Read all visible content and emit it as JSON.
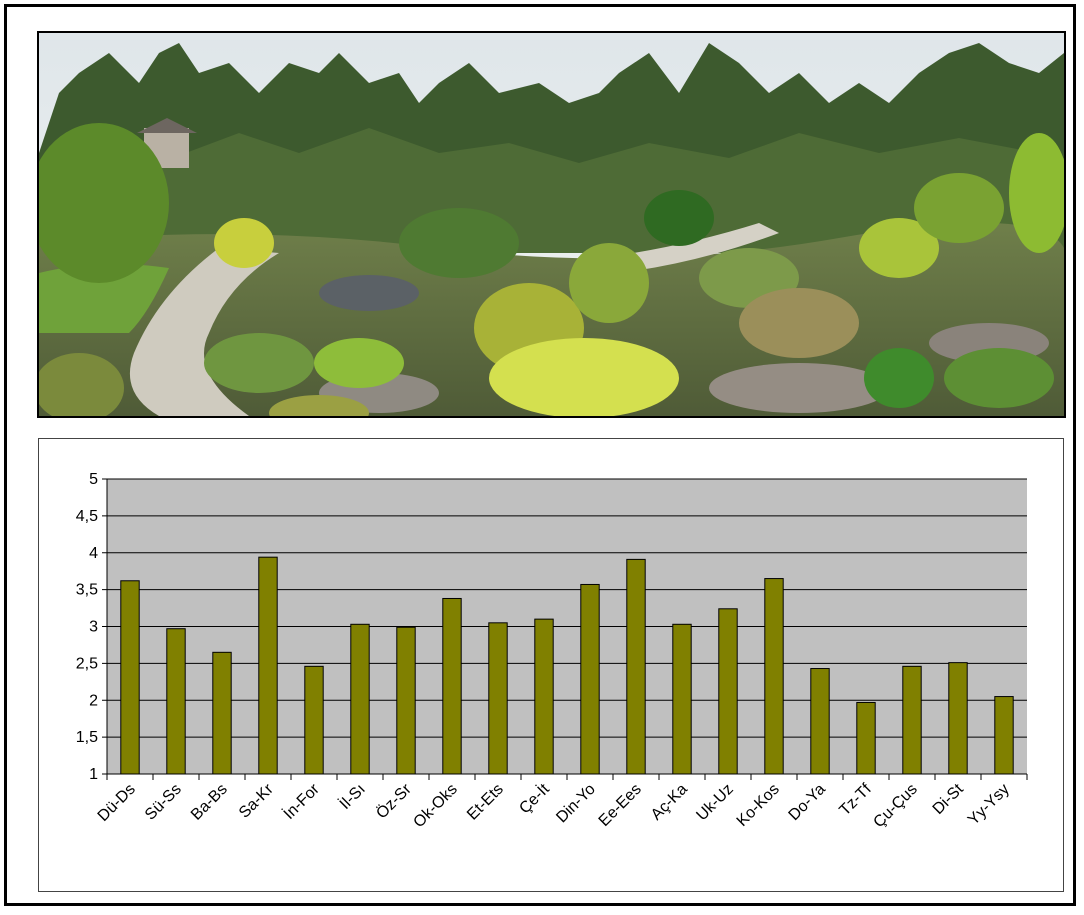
{
  "photo": {
    "subject": "rock-garden-panorama"
  },
  "colors": {
    "bar_fill": "#808000",
    "plot_bg": "#C0C0C0",
    "grid": "#000000",
    "axis": "#000000"
  },
  "chart_data": {
    "type": "bar",
    "categories": [
      "Dü-Ds",
      "Sü-Ss",
      "Ba-Bs",
      "Sa-Kr",
      "İn-For",
      "İl-Sı",
      "Öz-Sr",
      "Ok-Oks",
      "Et-Ets",
      "Çe-İt",
      "Din-Yo",
      "Ee-Ees",
      "Aç-Ka",
      "Uk-Uz",
      "Ko-Kos",
      "Do-Ya",
      "Tz-Tf",
      "Çu-Çus",
      "Di-St",
      "Yy-Ysy"
    ],
    "values": [
      3.62,
      2.97,
      2.65,
      3.94,
      2.46,
      3.03,
      2.99,
      3.38,
      3.05,
      3.1,
      3.57,
      3.91,
      3.03,
      3.24,
      3.65,
      2.43,
      1.97,
      2.46,
      2.51,
      2.05
    ],
    "ylim": [
      1,
      5
    ],
    "yticks": [
      "1",
      "1,5",
      "2",
      "2,5",
      "3",
      "3,5",
      "4",
      "4,5",
      "5"
    ],
    "grid": true,
    "legend": "none"
  }
}
